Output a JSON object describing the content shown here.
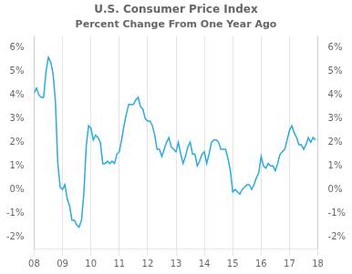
{
  "chart_data": {
    "type": "line",
    "title": "U.S. Consumer Price Index",
    "subtitle": "Percent Change From One Year Ago",
    "color": "#29ABE2",
    "grid": "x",
    "xlim": [
      8.0,
      18.0
    ],
    "xticks": [
      {
        "value": 8,
        "label": "08"
      },
      {
        "value": 9,
        "label": "09"
      },
      {
        "value": 10,
        "label": "10"
      },
      {
        "value": 11,
        "label": "11"
      },
      {
        "value": 12,
        "label": "12"
      },
      {
        "value": 13,
        "label": "13"
      },
      {
        "value": 14,
        "label": "14"
      },
      {
        "value": 15,
        "label": "15"
      },
      {
        "value": 16,
        "label": "16"
      },
      {
        "value": 17,
        "label": "17"
      },
      {
        "value": 18,
        "label": "18"
      }
    ],
    "ylim": [
      -2.5,
      6.5
    ],
    "yticks": [
      {
        "value": -2,
        "label": "-2%"
      },
      {
        "value": -1,
        "label": "-1%"
      },
      {
        "value": 0,
        "label": "0%"
      },
      {
        "value": 1,
        "label": "1%"
      },
      {
        "value": 2,
        "label": "2%"
      },
      {
        "value": 3,
        "label": "3%"
      },
      {
        "value": 4,
        "label": "4%"
      },
      {
        "value": 5,
        "label": "5%"
      },
      {
        "value": 6,
        "label": "6%"
      }
    ],
    "y2lim": [
      -2.5,
      6.5
    ],
    "y2ticks": [
      {
        "value": -2,
        "label": "-2%"
      },
      {
        "value": -1,
        "label": "-1%"
      },
      {
        "value": 0,
        "label": "0%"
      },
      {
        "value": 1,
        "label": "1%"
      },
      {
        "value": 2,
        "label": "2%"
      },
      {
        "value": 3,
        "label": "3%"
      },
      {
        "value": 4,
        "label": "4%"
      },
      {
        "value": 5,
        "label": "5%"
      },
      {
        "value": 6,
        "label": "6%"
      }
    ],
    "x": [
      8.0,
      8.083,
      8.167,
      8.25,
      8.333,
      8.417,
      8.5,
      8.583,
      8.667,
      8.75,
      8.833,
      8.917,
      9.0,
      9.083,
      9.167,
      9.25,
      9.333,
      9.417,
      9.5,
      9.583,
      9.667,
      9.75,
      9.833,
      9.917,
      10.0,
      10.083,
      10.167,
      10.25,
      10.333,
      10.417,
      10.5,
      10.583,
      10.667,
      10.75,
      10.833,
      10.917,
      11.0,
      11.083,
      11.167,
      11.25,
      11.333,
      11.417,
      11.5,
      11.583,
      11.667,
      11.75,
      11.833,
      11.917,
      12.0,
      12.083,
      12.167,
      12.25,
      12.333,
      12.417,
      12.5,
      12.583,
      12.667,
      12.75,
      12.833,
      12.917,
      13.0,
      13.083,
      13.167,
      13.25,
      13.333,
      13.417,
      13.5,
      13.583,
      13.667,
      13.75,
      13.833,
      13.917,
      14.0,
      14.083,
      14.167,
      14.25,
      14.333,
      14.417,
      14.5,
      14.583,
      14.667,
      14.75,
      14.833,
      14.917,
      15.0,
      15.083,
      15.167,
      15.25,
      15.333,
      15.417,
      15.5,
      15.583,
      15.667,
      15.75,
      15.833,
      15.917,
      16.0,
      16.083,
      16.167,
      16.25,
      16.333,
      16.417,
      16.5,
      16.583,
      16.667,
      16.75,
      16.833,
      16.917,
      17.0,
      17.083,
      17.167,
      17.25,
      17.333,
      17.417,
      17.5,
      17.583,
      17.667,
      17.75,
      17.833,
      17.917
    ],
    "values": [
      4.1,
      4.3,
      4.0,
      3.9,
      3.9,
      5.0,
      5.6,
      5.4,
      4.9,
      3.7,
      1.1,
      0.1,
      0.0,
      0.2,
      -0.4,
      -0.7,
      -1.3,
      -1.3,
      -1.5,
      -1.6,
      -1.3,
      -0.2,
      1.8,
      2.7,
      2.6,
      2.1,
      2.3,
      2.2,
      2.0,
      1.1,
      1.1,
      1.2,
      1.1,
      1.2,
      1.1,
      1.5,
      1.6,
      2.1,
      2.7,
      3.2,
      3.6,
      3.6,
      3.6,
      3.8,
      3.9,
      3.5,
      3.4,
      3.0,
      2.9,
      2.9,
      2.7,
      2.3,
      1.7,
      1.7,
      1.4,
      1.7,
      2.0,
      2.2,
      1.8,
      1.7,
      1.6,
      2.0,
      1.5,
      1.1,
      1.4,
      1.8,
      2.0,
      1.5,
      1.5,
      1.0,
      1.2,
      1.5,
      1.6,
      1.1,
      1.5,
      2.0,
      2.1,
      2.1,
      2.0,
      1.7,
      1.7,
      1.7,
      1.3,
      0.8,
      -0.1,
      0.0,
      -0.1,
      -0.2,
      0.0,
      0.1,
      0.2,
      0.2,
      0.0,
      0.2,
      0.5,
      0.7,
      1.4,
      1.0,
      0.9,
      1.1,
      1.0,
      1.0,
      0.8,
      1.1,
      1.5,
      1.6,
      1.7,
      2.1,
      2.5,
      2.7,
      2.4,
      2.2,
      1.9,
      1.9,
      1.7,
      1.9,
      2.2,
      2.0,
      2.2,
      2.1
    ]
  }
}
